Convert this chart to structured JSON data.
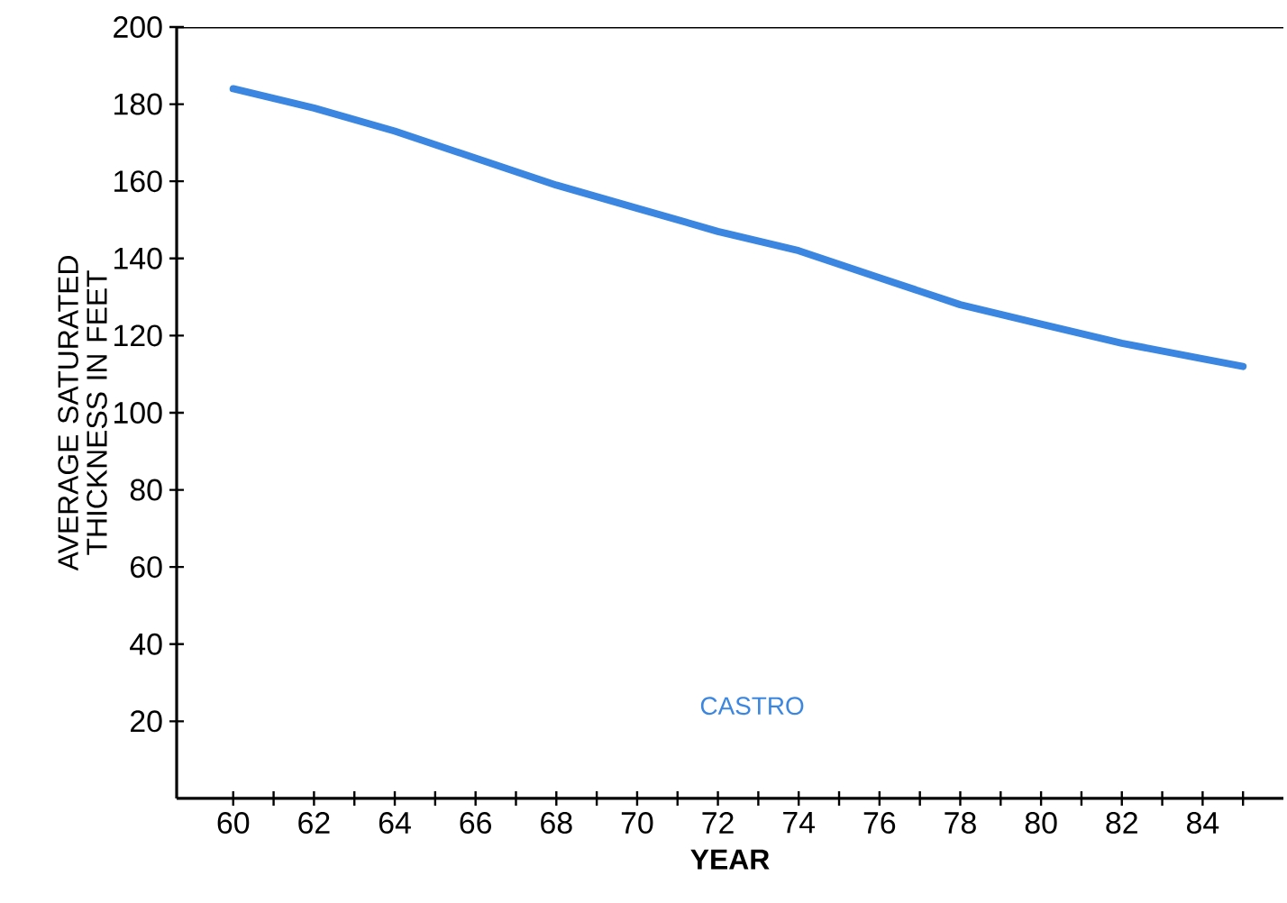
{
  "chart_data": {
    "type": "line",
    "xlabel": "YEAR",
    "ylabel": "AVERAGE SATURATED THICKNESS IN FEET",
    "x": [
      1960,
      1962,
      1964,
      1966,
      1968,
      1970,
      1972,
      1974,
      1976,
      1978,
      1980,
      1982,
      1984,
      1985
    ],
    "series": [
      {
        "name": "CASTRO",
        "color": "#3a86e0",
        "values": [
          184,
          179,
          173,
          166,
          159,
          153,
          147,
          142,
          135,
          128,
          123,
          118,
          114,
          112
        ]
      }
    ],
    "xlim": [
      1958.6,
      1986
    ],
    "xticks": [
      {
        "value": 1960,
        "label": "60"
      },
      {
        "value": 1961,
        "label": null
      },
      {
        "value": 1962,
        "label": "62"
      },
      {
        "value": 1963,
        "label": null
      },
      {
        "value": 1964,
        "label": "64"
      },
      {
        "value": 1965,
        "label": null
      },
      {
        "value": 1966,
        "label": "66"
      },
      {
        "value": 1967,
        "label": null
      },
      {
        "value": 1968,
        "label": "68"
      },
      {
        "value": 1969,
        "label": null
      },
      {
        "value": 1970,
        "label": "70"
      },
      {
        "value": 1971,
        "label": null
      },
      {
        "value": 1972,
        "label": "72"
      },
      {
        "value": 1973,
        "label": null
      },
      {
        "value": 1974,
        "label": "74"
      },
      {
        "value": 1975,
        "label": null
      },
      {
        "value": 1976,
        "label": "76"
      },
      {
        "value": 1977,
        "label": null
      },
      {
        "value": 1978,
        "label": "78"
      },
      {
        "value": 1979,
        "label": null
      },
      {
        "value": 1980,
        "label": "80"
      },
      {
        "value": 1981,
        "label": null
      },
      {
        "value": 1982,
        "label": "82"
      },
      {
        "value": 1983,
        "label": null
      },
      {
        "value": 1984,
        "label": "84"
      },
      {
        "value": 1985,
        "label": null
      }
    ],
    "ylim": [
      0,
      200
    ],
    "yticks": [
      20,
      40,
      60,
      80,
      100,
      120,
      140,
      160,
      180,
      200
    ],
    "grid": false,
    "legend": false,
    "marker": "none",
    "line_style": "solid"
  }
}
